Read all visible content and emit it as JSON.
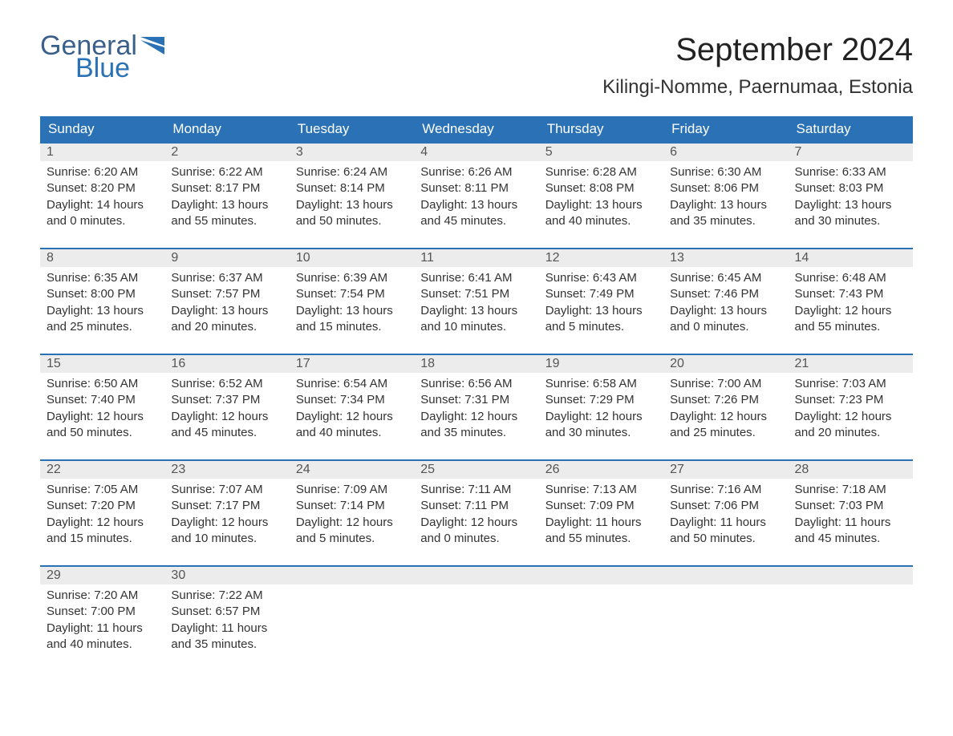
{
  "brand": {
    "word1": "General",
    "word2": "Blue",
    "color_word1": "#3a5f8a",
    "color_word2": "#2a72b5",
    "flag_color": "#2a72b5"
  },
  "header": {
    "month_title": "September 2024",
    "location": "Kilingi-Nomme, Paernumaa, Estonia"
  },
  "styling": {
    "header_bg": "#2a72b5",
    "header_text": "#ffffff",
    "daynum_bg": "#ececec",
    "daynum_border": "#2a72b5",
    "body_bg": "#ffffff",
    "text_color": "#333333",
    "title_fontsize": 40,
    "location_fontsize": 24,
    "weekday_fontsize": 17,
    "body_fontsize": 15,
    "columns": 7,
    "rows": 5
  },
  "weekdays": [
    "Sunday",
    "Monday",
    "Tuesday",
    "Wednesday",
    "Thursday",
    "Friday",
    "Saturday"
  ],
  "days": [
    {
      "n": "1",
      "sunrise": "Sunrise: 6:20 AM",
      "sunset": "Sunset: 8:20 PM",
      "d1": "Daylight: 14 hours",
      "d2": "and 0 minutes."
    },
    {
      "n": "2",
      "sunrise": "Sunrise: 6:22 AM",
      "sunset": "Sunset: 8:17 PM",
      "d1": "Daylight: 13 hours",
      "d2": "and 55 minutes."
    },
    {
      "n": "3",
      "sunrise": "Sunrise: 6:24 AM",
      "sunset": "Sunset: 8:14 PM",
      "d1": "Daylight: 13 hours",
      "d2": "and 50 minutes."
    },
    {
      "n": "4",
      "sunrise": "Sunrise: 6:26 AM",
      "sunset": "Sunset: 8:11 PM",
      "d1": "Daylight: 13 hours",
      "d2": "and 45 minutes."
    },
    {
      "n": "5",
      "sunrise": "Sunrise: 6:28 AM",
      "sunset": "Sunset: 8:08 PM",
      "d1": "Daylight: 13 hours",
      "d2": "and 40 minutes."
    },
    {
      "n": "6",
      "sunrise": "Sunrise: 6:30 AM",
      "sunset": "Sunset: 8:06 PM",
      "d1": "Daylight: 13 hours",
      "d2": "and 35 minutes."
    },
    {
      "n": "7",
      "sunrise": "Sunrise: 6:33 AM",
      "sunset": "Sunset: 8:03 PM",
      "d1": "Daylight: 13 hours",
      "d2": "and 30 minutes."
    },
    {
      "n": "8",
      "sunrise": "Sunrise: 6:35 AM",
      "sunset": "Sunset: 8:00 PM",
      "d1": "Daylight: 13 hours",
      "d2": "and 25 minutes."
    },
    {
      "n": "9",
      "sunrise": "Sunrise: 6:37 AM",
      "sunset": "Sunset: 7:57 PM",
      "d1": "Daylight: 13 hours",
      "d2": "and 20 minutes."
    },
    {
      "n": "10",
      "sunrise": "Sunrise: 6:39 AM",
      "sunset": "Sunset: 7:54 PM",
      "d1": "Daylight: 13 hours",
      "d2": "and 15 minutes."
    },
    {
      "n": "11",
      "sunrise": "Sunrise: 6:41 AM",
      "sunset": "Sunset: 7:51 PM",
      "d1": "Daylight: 13 hours",
      "d2": "and 10 minutes."
    },
    {
      "n": "12",
      "sunrise": "Sunrise: 6:43 AM",
      "sunset": "Sunset: 7:49 PM",
      "d1": "Daylight: 13 hours",
      "d2": "and 5 minutes."
    },
    {
      "n": "13",
      "sunrise": "Sunrise: 6:45 AM",
      "sunset": "Sunset: 7:46 PM",
      "d1": "Daylight: 13 hours",
      "d2": "and 0 minutes."
    },
    {
      "n": "14",
      "sunrise": "Sunrise: 6:48 AM",
      "sunset": "Sunset: 7:43 PM",
      "d1": "Daylight: 12 hours",
      "d2": "and 55 minutes."
    },
    {
      "n": "15",
      "sunrise": "Sunrise: 6:50 AM",
      "sunset": "Sunset: 7:40 PM",
      "d1": "Daylight: 12 hours",
      "d2": "and 50 minutes."
    },
    {
      "n": "16",
      "sunrise": "Sunrise: 6:52 AM",
      "sunset": "Sunset: 7:37 PM",
      "d1": "Daylight: 12 hours",
      "d2": "and 45 minutes."
    },
    {
      "n": "17",
      "sunrise": "Sunrise: 6:54 AM",
      "sunset": "Sunset: 7:34 PM",
      "d1": "Daylight: 12 hours",
      "d2": "and 40 minutes."
    },
    {
      "n": "18",
      "sunrise": "Sunrise: 6:56 AM",
      "sunset": "Sunset: 7:31 PM",
      "d1": "Daylight: 12 hours",
      "d2": "and 35 minutes."
    },
    {
      "n": "19",
      "sunrise": "Sunrise: 6:58 AM",
      "sunset": "Sunset: 7:29 PM",
      "d1": "Daylight: 12 hours",
      "d2": "and 30 minutes."
    },
    {
      "n": "20",
      "sunrise": "Sunrise: 7:00 AM",
      "sunset": "Sunset: 7:26 PM",
      "d1": "Daylight: 12 hours",
      "d2": "and 25 minutes."
    },
    {
      "n": "21",
      "sunrise": "Sunrise: 7:03 AM",
      "sunset": "Sunset: 7:23 PM",
      "d1": "Daylight: 12 hours",
      "d2": "and 20 minutes."
    },
    {
      "n": "22",
      "sunrise": "Sunrise: 7:05 AM",
      "sunset": "Sunset: 7:20 PM",
      "d1": "Daylight: 12 hours",
      "d2": "and 15 minutes."
    },
    {
      "n": "23",
      "sunrise": "Sunrise: 7:07 AM",
      "sunset": "Sunset: 7:17 PM",
      "d1": "Daylight: 12 hours",
      "d2": "and 10 minutes."
    },
    {
      "n": "24",
      "sunrise": "Sunrise: 7:09 AM",
      "sunset": "Sunset: 7:14 PM",
      "d1": "Daylight: 12 hours",
      "d2": "and 5 minutes."
    },
    {
      "n": "25",
      "sunrise": "Sunrise: 7:11 AM",
      "sunset": "Sunset: 7:11 PM",
      "d1": "Daylight: 12 hours",
      "d2": "and 0 minutes."
    },
    {
      "n": "26",
      "sunrise": "Sunrise: 7:13 AM",
      "sunset": "Sunset: 7:09 PM",
      "d1": "Daylight: 11 hours",
      "d2": "and 55 minutes."
    },
    {
      "n": "27",
      "sunrise": "Sunrise: 7:16 AM",
      "sunset": "Sunset: 7:06 PM",
      "d1": "Daylight: 11 hours",
      "d2": "and 50 minutes."
    },
    {
      "n": "28",
      "sunrise": "Sunrise: 7:18 AM",
      "sunset": "Sunset: 7:03 PM",
      "d1": "Daylight: 11 hours",
      "d2": "and 45 minutes."
    },
    {
      "n": "29",
      "sunrise": "Sunrise: 7:20 AM",
      "sunset": "Sunset: 7:00 PM",
      "d1": "Daylight: 11 hours",
      "d2": "and 40 minutes."
    },
    {
      "n": "30",
      "sunrise": "Sunrise: 7:22 AM",
      "sunset": "Sunset: 6:57 PM",
      "d1": "Daylight: 11 hours",
      "d2": "and 35 minutes."
    }
  ]
}
